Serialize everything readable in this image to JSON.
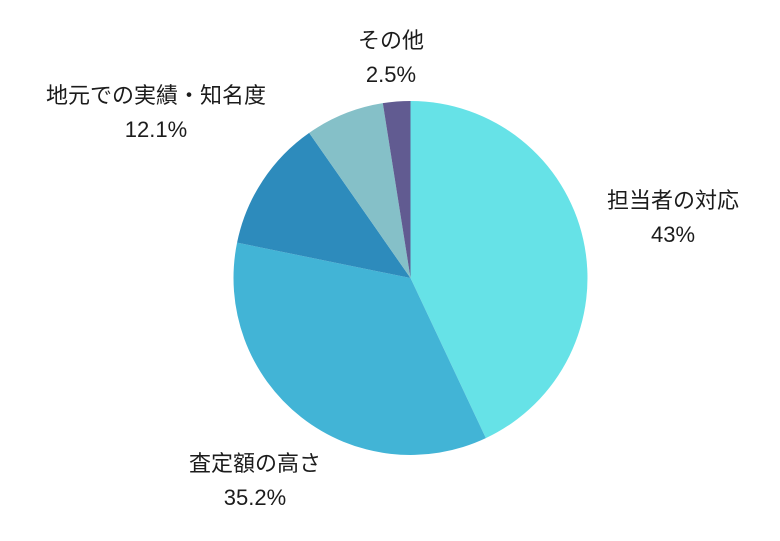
{
  "page": {
    "background_color": "#ffffff",
    "text_color": "#1c1c1c"
  },
  "chart_data": {
    "type": "pie",
    "legend_position": "none",
    "labels_outside": true,
    "start_angle_deg": 0,
    "direction": "clockwise",
    "slices": [
      {
        "label": "担当者の対応",
        "value": 43,
        "display_value": "43%",
        "color": "#66e2e7"
      },
      {
        "label": "査定額の高さ",
        "value": 35.2,
        "display_value": "35.2%",
        "color": "#42b4d6"
      },
      {
        "label": "地元での実績・知名度",
        "value": 12.1,
        "display_value": "12.1%",
        "color": "#2d8bbc"
      },
      {
        "label": "",
        "value": 7.2,
        "display_value": "",
        "color": "#85c0c8"
      },
      {
        "label": "その他",
        "value": 2.5,
        "display_value": "2.5%",
        "color": "#615b91"
      }
    ]
  }
}
